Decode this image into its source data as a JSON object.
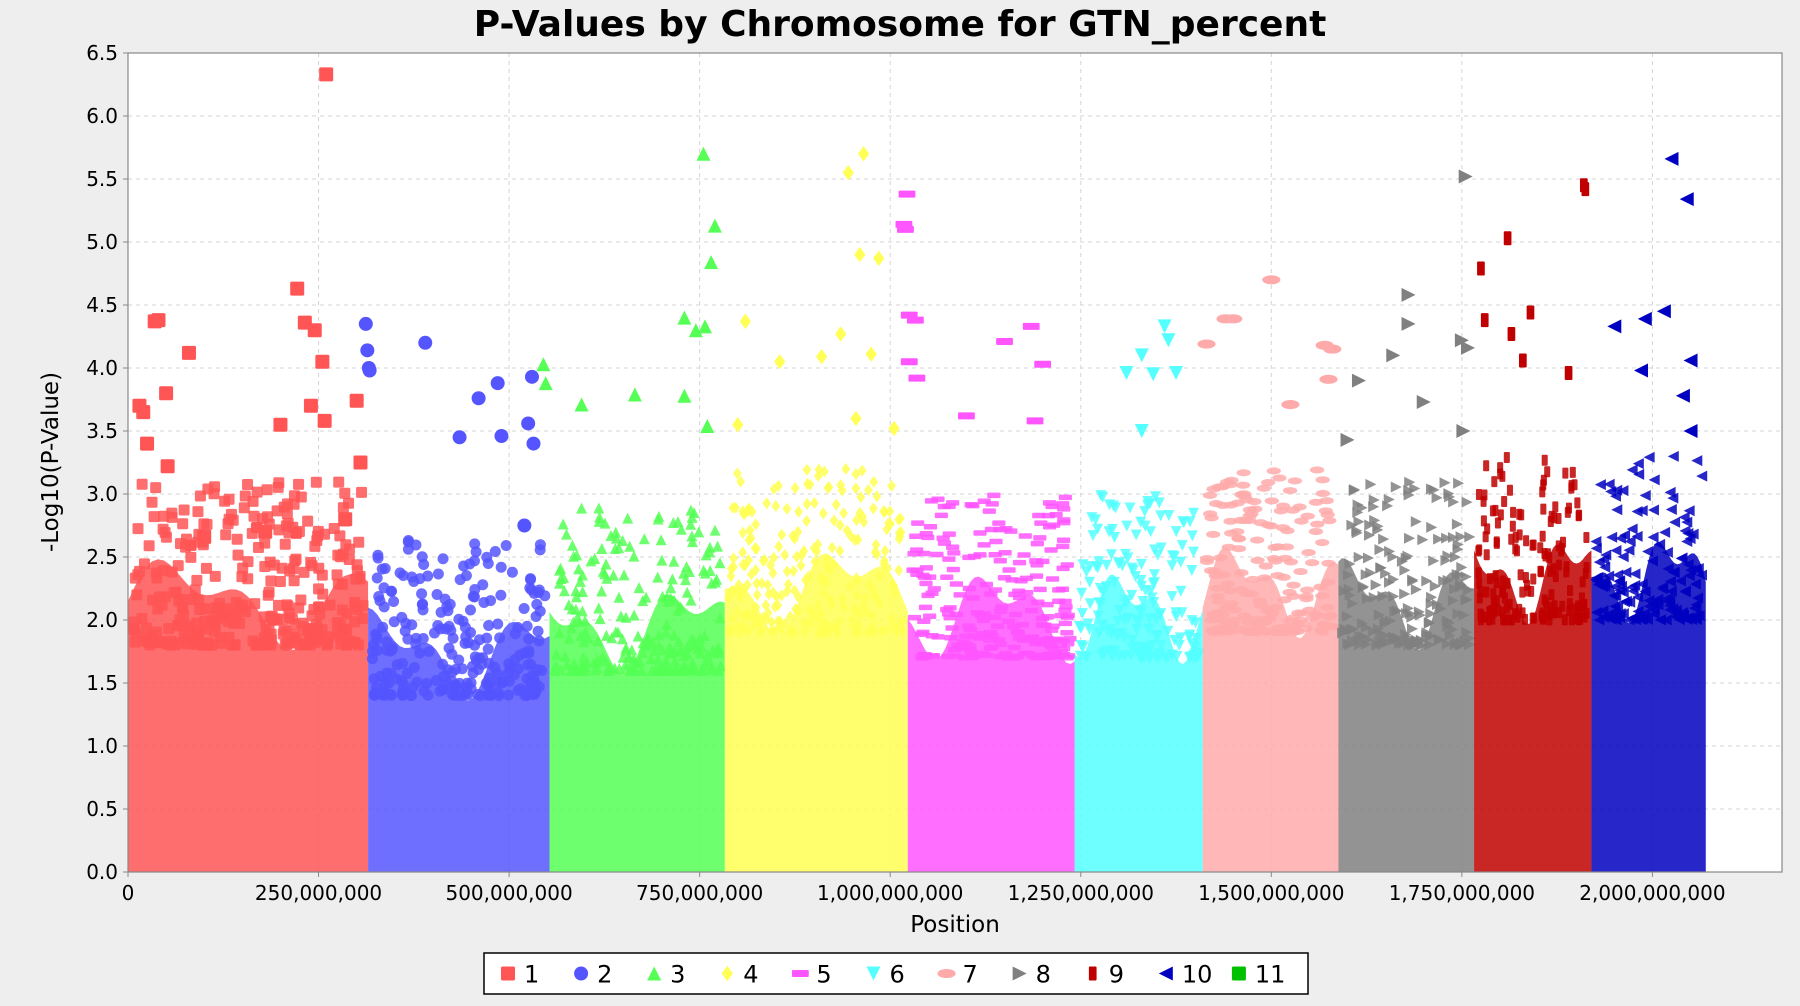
{
  "chart_data": {
    "type": "scatter",
    "title": "P-Values by Chromosome for GTN_percent",
    "xlabel": "Position",
    "ylabel": "-Log10(P-Value)",
    "xlim": [
      0,
      2170000000
    ],
    "ylim": [
      0,
      6.5
    ],
    "x_ticks": [
      0,
      250000000,
      500000000,
      750000000,
      1000000000,
      1250000000,
      1500000000,
      1750000000,
      2000000000
    ],
    "x_tick_labels": [
      "0",
      "250,000,000",
      "500,000,000",
      "750,000,000",
      "1,000,000,000",
      "1,250,000,000",
      "1,500,000,000",
      "1,750,000,000",
      "2,000,000,000"
    ],
    "y_ticks": [
      0,
      0.5,
      1.0,
      1.5,
      2.0,
      2.5,
      3.0,
      3.5,
      4.0,
      4.5,
      5.0,
      5.5,
      6.0,
      6.5
    ],
    "y_tick_labels": [
      "0.0",
      "0.5",
      "1.0",
      "1.5",
      "2.0",
      "2.5",
      "3.0",
      "3.5",
      "4.0",
      "4.5",
      "5.0",
      "5.5",
      "6.0",
      "6.5"
    ],
    "grid": true,
    "legend_position": "bottom-center",
    "series": [
      {
        "name": "1",
        "color": "#ff5555",
        "marker": "square",
        "x_range": [
          0,
          315000000
        ],
        "typical_max": 2.7,
        "points": [
          [
            15000000,
            3.7
          ],
          [
            20000000,
            3.65
          ],
          [
            25000000,
            3.4
          ],
          [
            35000000,
            4.37
          ],
          [
            40000000,
            4.38
          ],
          [
            50000000,
            3.8
          ],
          [
            52000000,
            3.22
          ],
          [
            80000000,
            4.12
          ],
          [
            100000000,
            2.66
          ],
          [
            140000000,
            2.03
          ],
          [
            180000000,
            2.7
          ],
          [
            200000000,
            3.55
          ],
          [
            222000000,
            4.63
          ],
          [
            232000000,
            4.36
          ],
          [
            240000000,
            3.7
          ],
          [
            245000000,
            4.3
          ],
          [
            255000000,
            4.05
          ],
          [
            258000000,
            3.58
          ],
          [
            260000000,
            6.33
          ],
          [
            285000000,
            2.8
          ],
          [
            300000000,
            3.74
          ],
          [
            305000000,
            3.25
          ]
        ]
      },
      {
        "name": "2",
        "color": "#5555ff",
        "marker": "circle",
        "x_range": [
          315000000,
          553000000
        ],
        "typical_max": 2.3,
        "points": [
          [
            312000000,
            4.35
          ],
          [
            314000000,
            4.14
          ],
          [
            316000000,
            4.0
          ],
          [
            317000000,
            3.98
          ],
          [
            390000000,
            4.2
          ],
          [
            435000000,
            3.45
          ],
          [
            460000000,
            3.76
          ],
          [
            485000000,
            3.88
          ],
          [
            490000000,
            3.46
          ],
          [
            525000000,
            3.56
          ],
          [
            530000000,
            3.93
          ],
          [
            532000000,
            3.4
          ],
          [
            520000000,
            2.75
          ]
        ]
      },
      {
        "name": "3",
        "color": "#55ff55",
        "marker": "triangle-up",
        "x_range": [
          553000000,
          783000000
        ],
        "typical_max": 2.5,
        "points": [
          [
            545000000,
            4.03
          ],
          [
            548000000,
            3.88
          ],
          [
            595000000,
            3.71
          ],
          [
            665000000,
            3.79
          ],
          [
            730000000,
            4.4
          ],
          [
            730000000,
            3.78
          ],
          [
            745000000,
            4.3
          ],
          [
            755000000,
            5.7
          ],
          [
            757000000,
            4.33
          ],
          [
            765000000,
            4.84
          ],
          [
            770000000,
            5.13
          ],
          [
            760000000,
            3.54
          ]
        ]
      },
      {
        "name": "4",
        "color": "#ffff55",
        "marker": "diamond",
        "x_range": [
          783000000,
          1023000000
        ],
        "typical_max": 2.8,
        "points": [
          [
            800000000,
            3.55
          ],
          [
            810000000,
            4.37
          ],
          [
            855000000,
            4.05
          ],
          [
            910000000,
            4.09
          ],
          [
            935000000,
            4.27
          ],
          [
            945000000,
            5.55
          ],
          [
            955000000,
            3.6
          ],
          [
            960000000,
            4.9
          ],
          [
            965000000,
            5.7
          ],
          [
            975000000,
            4.11
          ],
          [
            985000000,
            4.87
          ],
          [
            1005000000,
            3.52
          ]
        ]
      },
      {
        "name": "5",
        "color": "#ff55ff",
        "marker": "dash",
        "x_range": [
          1023000000,
          1242000000
        ],
        "typical_max": 2.6,
        "points": [
          [
            1018000000,
            5.14
          ],
          [
            1020000000,
            5.1
          ],
          [
            1022000000,
            5.38
          ],
          [
            1025000000,
            4.42
          ],
          [
            1033000000,
            4.38
          ],
          [
            1025000000,
            4.05
          ],
          [
            1035000000,
            3.92
          ],
          [
            1100000000,
            3.62
          ],
          [
            1150000000,
            4.21
          ],
          [
            1185000000,
            4.33
          ],
          [
            1200000000,
            4.03
          ],
          [
            1190000000,
            3.58
          ]
        ]
      },
      {
        "name": "6",
        "color": "#55ffff",
        "marker": "triangle-down",
        "x_range": [
          1242000000,
          1410000000
        ],
        "typical_max": 2.6,
        "points": [
          [
            1330000000,
            4.1
          ],
          [
            1345000000,
            3.95
          ],
          [
            1360000000,
            4.33
          ],
          [
            1365000000,
            4.22
          ],
          [
            1375000000,
            3.96
          ],
          [
            1330000000,
            3.5
          ],
          [
            1310000000,
            3.96
          ]
        ]
      },
      {
        "name": "7",
        "color": "#ffaaaa",
        "marker": "ellipse",
        "x_range": [
          1410000000,
          1588000000
        ],
        "typical_max": 2.8,
        "points": [
          [
            1415000000,
            4.19
          ],
          [
            1440000000,
            4.39
          ],
          [
            1450000000,
            4.39
          ],
          [
            1500000000,
            4.7
          ],
          [
            1525000000,
            3.71
          ],
          [
            1570000000,
            4.18
          ],
          [
            1580000000,
            4.15
          ],
          [
            1575000000,
            3.91
          ]
        ]
      },
      {
        "name": "8",
        "color": "#808080",
        "marker": "triangle-right",
        "x_range": [
          1588000000,
          1766000000
        ],
        "typical_max": 2.7,
        "points": [
          [
            1600000000,
            3.43
          ],
          [
            1615000000,
            3.9
          ],
          [
            1660000000,
            4.1
          ],
          [
            1680000000,
            4.58
          ],
          [
            1680000000,
            4.35
          ],
          [
            1700000000,
            3.73
          ],
          [
            1750000000,
            4.22
          ],
          [
            1755000000,
            5.52
          ],
          [
            1758000000,
            4.16
          ],
          [
            1752000000,
            3.5
          ]
        ]
      },
      {
        "name": "9",
        "color": "#c00000",
        "marker": "bar",
        "x_range": [
          1766000000,
          1920000000
        ],
        "typical_max": 2.9,
        "points": [
          [
            1775000000,
            4.79
          ],
          [
            1780000000,
            4.38
          ],
          [
            1810000000,
            5.03
          ],
          [
            1815000000,
            4.27
          ],
          [
            1830000000,
            4.06
          ],
          [
            1840000000,
            4.44
          ],
          [
            1890000000,
            3.96
          ],
          [
            1910000000,
            5.45
          ],
          [
            1912000000,
            5.42
          ]
        ]
      },
      {
        "name": "10",
        "color": "#0000c0",
        "marker": "triangle-left",
        "x_range": [
          1920000000,
          2070000000
        ],
        "typical_max": 2.9,
        "points": [
          [
            1950000000,
            4.33
          ],
          [
            1985000000,
            3.98
          ],
          [
            1990000000,
            4.39
          ],
          [
            2015000000,
            4.45
          ],
          [
            2025000000,
            5.66
          ],
          [
            2045000000,
            5.34
          ],
          [
            2050000000,
            4.06
          ],
          [
            2040000000,
            3.78
          ],
          [
            2050000000,
            3.5
          ]
        ]
      },
      {
        "name": "11",
        "color": "#00c000",
        "marker": "square",
        "x_range": [],
        "points": []
      }
    ]
  }
}
